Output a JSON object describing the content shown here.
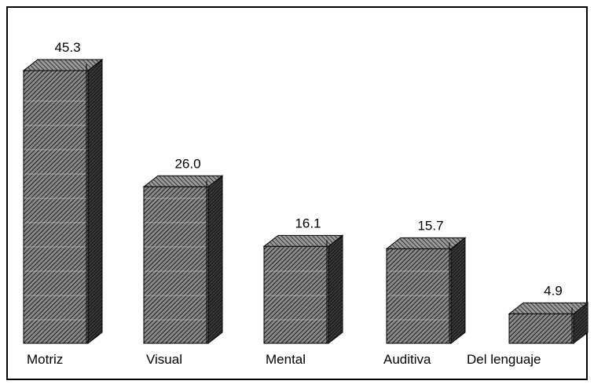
{
  "chart_data": {
    "type": "bar",
    "style": "3d-hatched",
    "categories": [
      "Motriz",
      "Visual",
      "Mental",
      "Auditiva",
      "Del lenguaje"
    ],
    "values": [
      45.3,
      26.0,
      16.1,
      15.7,
      4.9
    ],
    "value_labels": [
      "45.3",
      "26.0",
      "16.1",
      "15.7",
      "4.9"
    ],
    "title": "",
    "xlabel": "",
    "ylabel": "",
    "ylim": [
      0,
      45.3
    ],
    "grid": false,
    "legend": "none",
    "colors": {
      "bar": "#555555",
      "hatch": "#000000",
      "frame": "#000000"
    }
  }
}
